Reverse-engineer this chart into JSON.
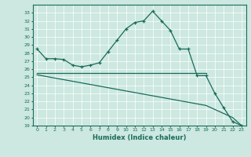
{
  "xlabel": "Humidex (Indice chaleur)",
  "ylabel": "",
  "background_color": "#cce8e0",
  "line_color": "#1a6b5a",
  "xlim": [
    -0.5,
    23.5
  ],
  "ylim": [
    19,
    34
  ],
  "yticks": [
    19,
    20,
    21,
    22,
    23,
    24,
    25,
    26,
    27,
    28,
    29,
    30,
    31,
    32,
    33
  ],
  "xticks": [
    0,
    1,
    2,
    3,
    4,
    5,
    6,
    7,
    8,
    9,
    10,
    11,
    12,
    13,
    14,
    15,
    16,
    17,
    18,
    19,
    20,
    21,
    22,
    23
  ],
  "series1_x": [
    0,
    1,
    2,
    3,
    4,
    5,
    6,
    7,
    8,
    9,
    10,
    11,
    12,
    13,
    14,
    15,
    16,
    17,
    18,
    19,
    20,
    21,
    22,
    23
  ],
  "series1_y": [
    28.5,
    27.3,
    27.3,
    27.2,
    26.5,
    26.3,
    26.5,
    26.8,
    28.2,
    29.6,
    31.0,
    31.8,
    32.0,
    33.2,
    32.0,
    30.8,
    28.5,
    28.5,
    25.2,
    25.2,
    23.0,
    21.2,
    19.5,
    19.0
  ],
  "series2_x": [
    0,
    19
  ],
  "series2_y": [
    25.5,
    25.5
  ],
  "series3_x": [
    0,
    1,
    2,
    3,
    4,
    5,
    6,
    7,
    8,
    9,
    10,
    11,
    12,
    13,
    14,
    15,
    16,
    17,
    18,
    19,
    20,
    21,
    22,
    23
  ],
  "series3_y": [
    25.3,
    25.1,
    24.9,
    24.7,
    24.5,
    24.3,
    24.1,
    23.9,
    23.7,
    23.5,
    23.3,
    23.1,
    22.9,
    22.7,
    22.5,
    22.3,
    22.1,
    21.9,
    21.7,
    21.5,
    21.0,
    20.5,
    20.0,
    19.0
  ]
}
